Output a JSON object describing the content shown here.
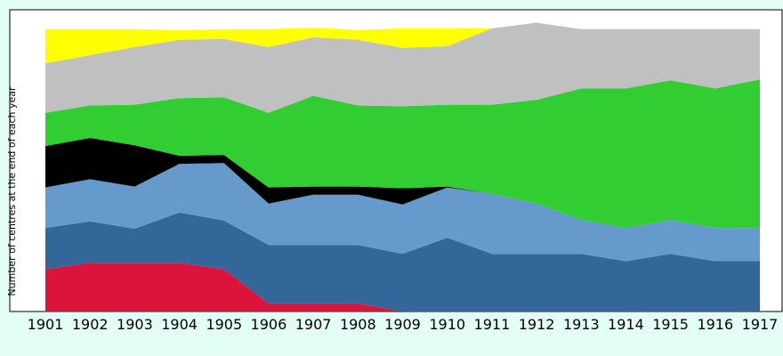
{
  "chart_data": {
    "type": "area",
    "stacked": true,
    "title": "",
    "xlabel": "",
    "ylabel": "Number of centres at the end of each year",
    "categories": [
      "1901",
      "1902",
      "1903",
      "1904",
      "1905",
      "1906",
      "1907",
      "1908",
      "1909",
      "1910",
      "1911",
      "1912",
      "1913",
      "1914",
      "1915",
      "1916",
      "1917"
    ],
    "ylim": [
      0,
      35
    ],
    "grid": false,
    "legend": "none",
    "background": "#e3fff5",
    "plot_background": "#ffffff",
    "series": [
      {
        "color": "#dc143c",
        "values": [
          5.2,
          6.0,
          6.0,
          6.0,
          5.2,
          1.0,
          1.0,
          1.0,
          0,
          0,
          0,
          0,
          0,
          0,
          0,
          0,
          0
        ]
      },
      {
        "color": "#336699",
        "values": [
          5.1,
          5.1,
          4.2,
          6.2,
          6.0,
          7.2,
          7.2,
          7.2,
          7.1,
          9.1,
          7.1,
          7.1,
          7.1,
          6.2,
          7.1,
          6.2,
          6.2
        ]
      },
      {
        "color": "#6699cc",
        "values": [
          5.0,
          5.2,
          5.2,
          6.0,
          7.1,
          5.1,
          6.2,
          6.2,
          6.1,
          6.2,
          7.4,
          6.2,
          4.2,
          4.1,
          4.2,
          4.1,
          4.1
        ]
      },
      {
        "color": "#000000",
        "values": [
          5.1,
          5.1,
          5.1,
          1.0,
          1.0,
          2.0,
          1.0,
          1.0,
          2.0,
          0.1,
          0,
          0,
          0,
          0,
          0,
          0,
          0
        ]
      },
      {
        "color": "#32cd32",
        "values": [
          4.1,
          4.0,
          5.0,
          7.1,
          7.1,
          9.2,
          11.2,
          10.0,
          10.1,
          10.1,
          11.0,
          12.8,
          16.2,
          17.2,
          17.2,
          17.2,
          18.3
        ]
      },
      {
        "color": "#c0c0c0",
        "values": [
          6.1,
          6.2,
          7.1,
          7.2,
          7.2,
          8.1,
          7.2,
          8.1,
          7.2,
          7.2,
          9.4,
          9.5,
          7.3,
          7.3,
          6.3,
          7.3,
          6.2
        ]
      },
      {
        "color": "#ffff00",
        "values": [
          4.2,
          3.2,
          2.2,
          1.2,
          1.2,
          2.2,
          1.2,
          1.2,
          2.4,
          2.2,
          0,
          0,
          0,
          0,
          0,
          0,
          0
        ]
      }
    ]
  }
}
